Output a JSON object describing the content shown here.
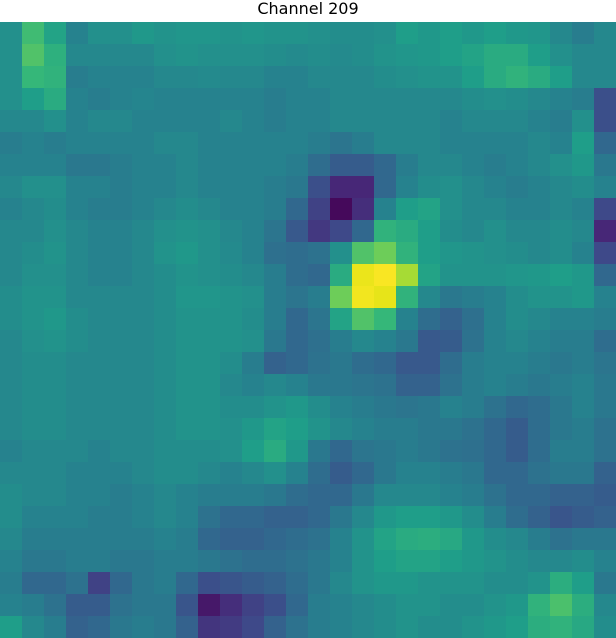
{
  "chart_data": {
    "type": "heatmap",
    "title": "Channel 209",
    "colormap": "viridis",
    "value_range": [
      0,
      1
    ],
    "grid": false,
    "rows": 28,
    "cols": 28,
    "values": [
      [
        0.45,
        0.62,
        0.52,
        0.4,
        0.45,
        0.45,
        0.48,
        0.46,
        0.47,
        0.47,
        0.46,
        0.47,
        0.46,
        0.46,
        0.45,
        0.44,
        0.44,
        0.45,
        0.5,
        0.48,
        0.5,
        0.48,
        0.5,
        0.48,
        0.47,
        0.42,
        0.38,
        0.42
      ],
      [
        0.45,
        0.65,
        0.57,
        0.42,
        0.42,
        0.42,
        0.42,
        0.45,
        0.46,
        0.45,
        0.45,
        0.45,
        0.44,
        0.43,
        0.44,
        0.43,
        0.44,
        0.46,
        0.47,
        0.48,
        0.5,
        0.52,
        0.55,
        0.55,
        0.5,
        0.45,
        0.42,
        0.42
      ],
      [
        0.45,
        0.6,
        0.58,
        0.38,
        0.4,
        0.4,
        0.4,
        0.42,
        0.42,
        0.43,
        0.42,
        0.42,
        0.4,
        0.4,
        0.42,
        0.42,
        0.42,
        0.44,
        0.45,
        0.46,
        0.46,
        0.5,
        0.55,
        0.58,
        0.55,
        0.5,
        0.42,
        0.42
      ],
      [
        0.45,
        0.5,
        0.55,
        0.4,
        0.38,
        0.4,
        0.41,
        0.4,
        0.4,
        0.4,
        0.4,
        0.4,
        0.38,
        0.4,
        0.4,
        0.42,
        0.42,
        0.42,
        0.42,
        0.42,
        0.42,
        0.44,
        0.45,
        0.44,
        0.42,
        0.4,
        0.38,
        0.22
      ],
      [
        0.42,
        0.42,
        0.45,
        0.4,
        0.42,
        0.42,
        0.4,
        0.4,
        0.4,
        0.4,
        0.42,
        0.4,
        0.38,
        0.4,
        0.4,
        0.42,
        0.42,
        0.42,
        0.42,
        0.42,
        0.4,
        0.42,
        0.42,
        0.42,
        0.4,
        0.38,
        0.45,
        0.22
      ],
      [
        0.38,
        0.4,
        0.38,
        0.4,
        0.4,
        0.4,
        0.4,
        0.42,
        0.42,
        0.4,
        0.4,
        0.4,
        0.4,
        0.4,
        0.38,
        0.35,
        0.38,
        0.42,
        0.42,
        0.42,
        0.4,
        0.4,
        0.4,
        0.4,
        0.42,
        0.4,
        0.5,
        0.3
      ],
      [
        0.4,
        0.4,
        0.4,
        0.36,
        0.36,
        0.38,
        0.4,
        0.4,
        0.42,
        0.4,
        0.4,
        0.4,
        0.4,
        0.38,
        0.32,
        0.26,
        0.26,
        0.3,
        0.38,
        0.42,
        0.42,
        0.4,
        0.38,
        0.4,
        0.42,
        0.45,
        0.48,
        0.36
      ],
      [
        0.42,
        0.45,
        0.45,
        0.4,
        0.4,
        0.38,
        0.4,
        0.4,
        0.42,
        0.4,
        0.4,
        0.4,
        0.38,
        0.36,
        0.22,
        0.1,
        0.1,
        0.3,
        0.4,
        0.44,
        0.45,
        0.42,
        0.4,
        0.38,
        0.4,
        0.42,
        0.44,
        0.4
      ],
      [
        0.4,
        0.42,
        0.44,
        0.4,
        0.38,
        0.38,
        0.4,
        0.42,
        0.44,
        0.42,
        0.4,
        0.4,
        0.38,
        0.3,
        0.18,
        0.02,
        0.12,
        0.4,
        0.5,
        0.52,
        0.45,
        0.42,
        0.42,
        0.4,
        0.4,
        0.42,
        0.4,
        0.2
      ],
      [
        0.42,
        0.42,
        0.45,
        0.42,
        0.4,
        0.4,
        0.42,
        0.45,
        0.46,
        0.45,
        0.42,
        0.4,
        0.35,
        0.25,
        0.15,
        0.2,
        0.3,
        0.58,
        0.55,
        0.5,
        0.44,
        0.42,
        0.45,
        0.42,
        0.42,
        0.44,
        0.42,
        0.1
      ],
      [
        0.42,
        0.44,
        0.46,
        0.42,
        0.4,
        0.4,
        0.42,
        0.46,
        0.48,
        0.45,
        0.43,
        0.4,
        0.33,
        0.32,
        0.34,
        0.45,
        0.65,
        0.7,
        0.58,
        0.5,
        0.47,
        0.46,
        0.45,
        0.44,
        0.42,
        0.44,
        0.4,
        0.2
      ],
      [
        0.42,
        0.45,
        0.45,
        0.42,
        0.4,
        0.4,
        0.42,
        0.44,
        0.46,
        0.45,
        0.44,
        0.42,
        0.38,
        0.32,
        0.3,
        0.55,
        0.92,
        0.98,
        0.78,
        0.52,
        0.46,
        0.46,
        0.46,
        0.47,
        0.48,
        0.5,
        0.48,
        0.3
      ],
      [
        0.44,
        0.46,
        0.46,
        0.42,
        0.42,
        0.42,
        0.42,
        0.44,
        0.47,
        0.47,
        0.46,
        0.45,
        0.38,
        0.35,
        0.38,
        0.7,
        0.95,
        0.9,
        0.58,
        0.42,
        0.36,
        0.38,
        0.4,
        0.44,
        0.46,
        0.46,
        0.48,
        0.4
      ],
      [
        0.44,
        0.46,
        0.48,
        0.44,
        0.42,
        0.42,
        0.42,
        0.44,
        0.46,
        0.46,
        0.46,
        0.44,
        0.38,
        0.3,
        0.35,
        0.52,
        0.65,
        0.6,
        0.4,
        0.32,
        0.28,
        0.33,
        0.4,
        0.44,
        0.42,
        0.4,
        0.4,
        0.38
      ],
      [
        0.42,
        0.45,
        0.46,
        0.44,
        0.42,
        0.42,
        0.42,
        0.44,
        0.46,
        0.46,
        0.46,
        0.45,
        0.36,
        0.3,
        0.33,
        0.38,
        0.42,
        0.4,
        0.36,
        0.25,
        0.26,
        0.34,
        0.4,
        0.42,
        0.4,
        0.38,
        0.38,
        0.32
      ],
      [
        0.42,
        0.44,
        0.44,
        0.42,
        0.42,
        0.42,
        0.42,
        0.44,
        0.46,
        0.46,
        0.44,
        0.38,
        0.28,
        0.3,
        0.34,
        0.36,
        0.32,
        0.3,
        0.25,
        0.25,
        0.32,
        0.38,
        0.4,
        0.4,
        0.38,
        0.36,
        0.38,
        0.35
      ],
      [
        0.42,
        0.44,
        0.44,
        0.42,
        0.42,
        0.42,
        0.42,
        0.44,
        0.46,
        0.46,
        0.42,
        0.4,
        0.42,
        0.4,
        0.36,
        0.36,
        0.35,
        0.34,
        0.28,
        0.28,
        0.34,
        0.38,
        0.4,
        0.38,
        0.36,
        0.38,
        0.4,
        0.36
      ],
      [
        0.42,
        0.44,
        0.44,
        0.42,
        0.42,
        0.42,
        0.42,
        0.44,
        0.46,
        0.46,
        0.44,
        0.44,
        0.46,
        0.48,
        0.44,
        0.4,
        0.38,
        0.36,
        0.35,
        0.36,
        0.4,
        0.38,
        0.34,
        0.3,
        0.32,
        0.36,
        0.4,
        0.36
      ],
      [
        0.42,
        0.44,
        0.44,
        0.42,
        0.42,
        0.42,
        0.42,
        0.44,
        0.46,
        0.46,
        0.45,
        0.48,
        0.52,
        0.5,
        0.46,
        0.42,
        0.4,
        0.38,
        0.38,
        0.36,
        0.36,
        0.34,
        0.3,
        0.26,
        0.32,
        0.36,
        0.38,
        0.34
      ],
      [
        0.4,
        0.42,
        0.42,
        0.42,
        0.4,
        0.42,
        0.42,
        0.44,
        0.44,
        0.44,
        0.45,
        0.5,
        0.55,
        0.48,
        0.36,
        0.3,
        0.35,
        0.36,
        0.38,
        0.36,
        0.34,
        0.33,
        0.3,
        0.26,
        0.32,
        0.38,
        0.38,
        0.34
      ],
      [
        0.42,
        0.42,
        0.42,
        0.4,
        0.4,
        0.4,
        0.42,
        0.44,
        0.44,
        0.42,
        0.4,
        0.42,
        0.45,
        0.4,
        0.32,
        0.26,
        0.3,
        0.36,
        0.4,
        0.4,
        0.38,
        0.36,
        0.3,
        0.3,
        0.34,
        0.36,
        0.36,
        0.28
      ],
      [
        0.44,
        0.42,
        0.42,
        0.4,
        0.4,
        0.38,
        0.4,
        0.42,
        0.4,
        0.38,
        0.38,
        0.38,
        0.36,
        0.32,
        0.3,
        0.3,
        0.36,
        0.42,
        0.42,
        0.42,
        0.4,
        0.38,
        0.34,
        0.3,
        0.3,
        0.28,
        0.28,
        0.26
      ],
      [
        0.44,
        0.4,
        0.4,
        0.4,
        0.38,
        0.38,
        0.4,
        0.42,
        0.4,
        0.34,
        0.3,
        0.3,
        0.28,
        0.28,
        0.3,
        0.36,
        0.42,
        0.48,
        0.5,
        0.5,
        0.48,
        0.44,
        0.38,
        0.32,
        0.28,
        0.24,
        0.26,
        0.28
      ],
      [
        0.42,
        0.38,
        0.38,
        0.38,
        0.38,
        0.38,
        0.38,
        0.4,
        0.38,
        0.3,
        0.28,
        0.28,
        0.3,
        0.32,
        0.34,
        0.4,
        0.46,
        0.52,
        0.55,
        0.56,
        0.54,
        0.48,
        0.44,
        0.42,
        0.38,
        0.34,
        0.36,
        0.36
      ],
      [
        0.4,
        0.36,
        0.36,
        0.38,
        0.38,
        0.36,
        0.36,
        0.38,
        0.38,
        0.36,
        0.34,
        0.32,
        0.32,
        0.34,
        0.36,
        0.4,
        0.46,
        0.5,
        0.52,
        0.52,
        0.5,
        0.48,
        0.46,
        0.44,
        0.42,
        0.42,
        0.44,
        0.4
      ],
      [
        0.38,
        0.3,
        0.3,
        0.34,
        0.18,
        0.3,
        0.36,
        0.38,
        0.3,
        0.22,
        0.24,
        0.26,
        0.28,
        0.32,
        0.36,
        0.42,
        0.46,
        0.48,
        0.48,
        0.46,
        0.46,
        0.46,
        0.44,
        0.44,
        0.46,
        0.56,
        0.5,
        0.36
      ],
      [
        0.4,
        0.38,
        0.34,
        0.26,
        0.26,
        0.34,
        0.36,
        0.36,
        0.24,
        0.06,
        0.12,
        0.18,
        0.22,
        0.3,
        0.38,
        0.4,
        0.42,
        0.44,
        0.46,
        0.46,
        0.44,
        0.44,
        0.46,
        0.48,
        0.58,
        0.64,
        0.56,
        0.42
      ],
      [
        0.5,
        0.42,
        0.38,
        0.28,
        0.3,
        0.36,
        0.38,
        0.36,
        0.28,
        0.14,
        0.16,
        0.2,
        0.28,
        0.34,
        0.38,
        0.4,
        0.42,
        0.44,
        0.46,
        0.44,
        0.44,
        0.46,
        0.48,
        0.5,
        0.56,
        0.58,
        0.54,
        0.44
      ]
    ]
  }
}
